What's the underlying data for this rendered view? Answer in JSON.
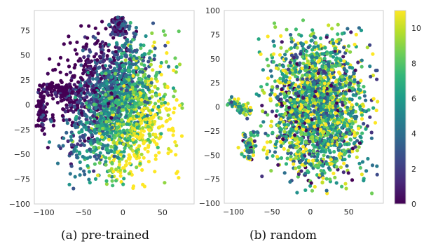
{
  "captions": {
    "left": "(a) pre-trained",
    "right": "(b) random"
  },
  "chart_data": [
    {
      "type": "scatter",
      "title": "",
      "xlabel": "",
      "ylabel": "",
      "xlim": [
        -112,
        90
      ],
      "ylim": [
        -100,
        95
      ],
      "xticks": [
        -100,
        -50,
        0,
        50
      ],
      "yticks": [
        -100,
        -75,
        -50,
        -25,
        0,
        25,
        50,
        75
      ],
      "grid": false,
      "colormap": "viridis",
      "color_range": [
        0,
        11
      ],
      "annotation_note": "t-SNE embedding colored by value 0-11; denser high values (yellow) on the lower-right, low values (purple/blue) on the left side"
    },
    {
      "type": "scatter",
      "title": "",
      "xlabel": "",
      "ylabel": "",
      "xlim": [
        -112,
        95
      ],
      "ylim": [
        -100,
        100
      ],
      "xticks": [
        -100,
        -50,
        0,
        50
      ],
      "yticks": [
        -100,
        -75,
        -50,
        -25,
        0,
        25,
        50,
        75,
        100
      ],
      "grid": false,
      "colormap": "viridis",
      "color_range": [
        0,
        11
      ],
      "annotation_note": "t-SNE embedding colored by value 0-11; colors well mixed across the cluster"
    }
  ],
  "colorbar": {
    "ticks": [
      0,
      2,
      4,
      6,
      8,
      10
    ],
    "range": [
      0,
      11
    ],
    "colors": [
      "#440154",
      "#482878",
      "#3e4989",
      "#31688e",
      "#26828e",
      "#1f9e89",
      "#35b779",
      "#6ece58",
      "#b5de2b",
      "#fde725"
    ]
  },
  "colors": {
    "axis_frame": "#cccccc",
    "text": "#262626"
  }
}
